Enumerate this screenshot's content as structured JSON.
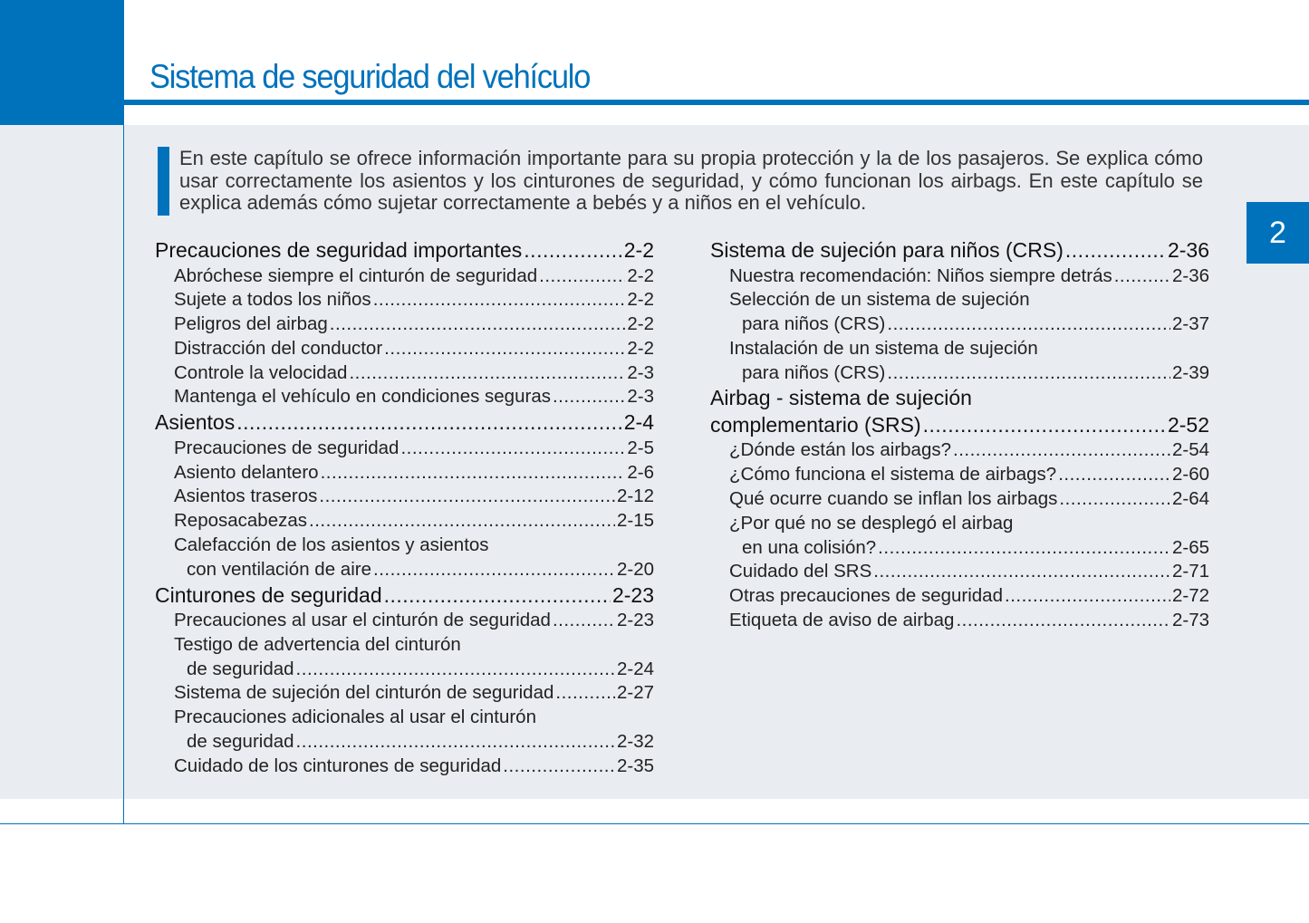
{
  "header": {
    "title": "Sistema de seguridad del vehículo",
    "chapter_tab": "2",
    "accent_color": "#0072bc"
  },
  "intro": "En este capítulo se ofrece información importante para su propia protección y la de los pasajeros. Se explica cómo usar correctamente los asientos y los cinturones de seguridad, y cómo funcionan los airbags. En este capítulo se explica además cómo sujetar correctamente a bebés y a niños en el vehículo.",
  "toc_left": [
    {
      "level": "main",
      "title": "Precauciones de seguridad importantes",
      "page": "2-2"
    },
    {
      "level": "sub",
      "title": "Abróchese siempre el cinturón de seguridad",
      "page": "2-2"
    },
    {
      "level": "sub",
      "title": "Sujete a todos los niños",
      "page": "2-2"
    },
    {
      "level": "sub",
      "title": "Peligros del airbag",
      "page": "2-2"
    },
    {
      "level": "sub",
      "title": "Distracción del conductor",
      "page": "2-2"
    },
    {
      "level": "sub",
      "title": "Controle la velocidad",
      "page": "2-3"
    },
    {
      "level": "sub",
      "title": "Mantenga el vehículo en condiciones seguras",
      "page": "2-3"
    },
    {
      "level": "main",
      "title": "Asientos",
      "page": "2-4"
    },
    {
      "level": "sub",
      "title": "Precauciones de seguridad",
      "page": "2-5"
    },
    {
      "level": "sub",
      "title": "Asiento delantero",
      "page": "2-6"
    },
    {
      "level": "sub",
      "title": "Asientos traseros",
      "page": "2-12"
    },
    {
      "level": "sub",
      "title": "Reposacabezas",
      "page": "2-15"
    },
    {
      "level": "sub",
      "title": "Calefacción de los asientos y asientos",
      "continuation": "con ventilación de aire",
      "page": "2-20"
    },
    {
      "level": "main",
      "title": "Cinturones de seguridad",
      "page": "2-23"
    },
    {
      "level": "sub",
      "title": "Precauciones al usar el cinturón de seguridad",
      "page": "2-23"
    },
    {
      "level": "sub",
      "title": "Testigo de advertencia del cinturón",
      "continuation": "de seguridad",
      "page": "2-24"
    },
    {
      "level": "sub",
      "title": "Sistema de sujeción del cinturón de seguridad",
      "page": "2-27"
    },
    {
      "level": "sub",
      "title": "Precauciones adicionales al usar el cinturón",
      "continuation": "de seguridad",
      "page": "2-32"
    },
    {
      "level": "sub",
      "title": "Cuidado de los cinturones de seguridad",
      "page": "2-35"
    }
  ],
  "toc_right": [
    {
      "level": "main",
      "title": "Sistema de sujeción para niños (CRS)",
      "page": "2-36"
    },
    {
      "level": "sub",
      "title": "Nuestra recomendación: Niños siempre detrás",
      "page": "2-36"
    },
    {
      "level": "sub",
      "title": "Selección de un sistema de sujeción",
      "continuation": "para niños (CRS)",
      "page": "2-37"
    },
    {
      "level": "sub",
      "title": "Instalación de un sistema de sujeción",
      "continuation": "para niños (CRS)",
      "page": "2-39"
    },
    {
      "level": "main",
      "title": "Airbag - sistema de sujeción",
      "continuation": "complementario (SRS)",
      "page": "2-52"
    },
    {
      "level": "sub",
      "title": "¿Dónde están los airbags?",
      "page": "2-54"
    },
    {
      "level": "sub",
      "title": "¿Cómo funciona el sistema de airbags?",
      "page": "2-60"
    },
    {
      "level": "sub",
      "title": "Qué ocurre cuando se inflan los airbags",
      "page": "2-64"
    },
    {
      "level": "sub",
      "title": "¿Por qué no se desplegó el airbag",
      "continuation": "en una colisión?",
      "page": "2-65"
    },
    {
      "level": "sub",
      "title": "Cuidado del SRS",
      "page": "2-71"
    },
    {
      "level": "sub",
      "title": "Otras precauciones de seguridad",
      "page": "2-72"
    },
    {
      "level": "sub",
      "title": "Etiqueta de aviso de airbag",
      "page": "2-73"
    }
  ]
}
